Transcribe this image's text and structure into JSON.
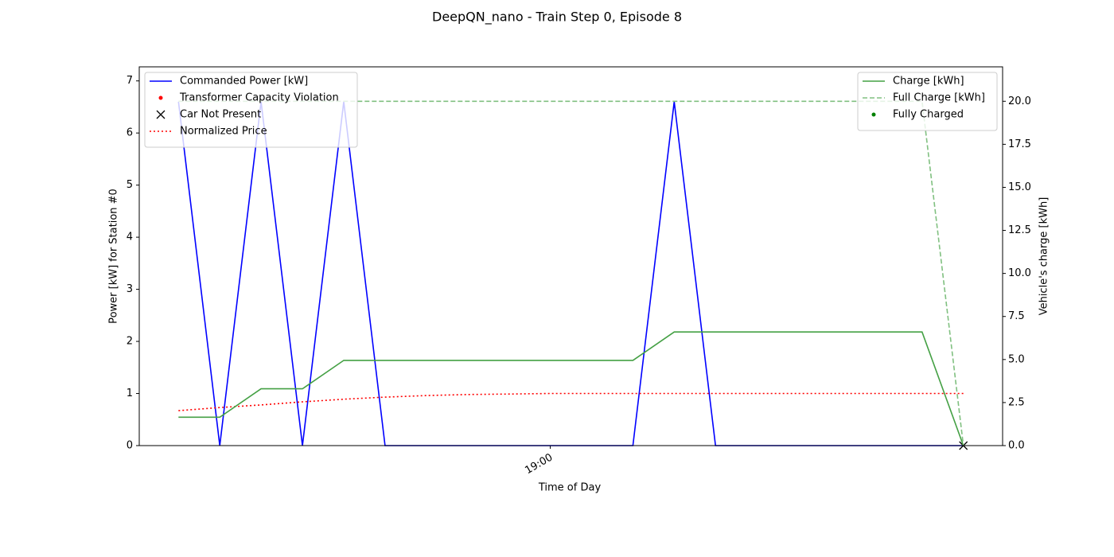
{
  "chart_data": {
    "type": "line",
    "title": "DeepQN_nano - Train Step 0, Episode 8",
    "xlabel": "Time of Day",
    "ylabel": "Power [kW] for Station #0",
    "y2label": "Vehicle's charge [kWh]",
    "x": [
      0,
      1,
      2,
      3,
      4,
      5,
      6,
      7,
      8,
      9,
      10,
      11,
      12,
      13,
      14,
      15,
      16,
      17,
      18,
      19
    ],
    "xlim": [
      -0.95,
      19.95
    ],
    "xticks": [
      {
        "value": 9,
        "label": "19:00"
      }
    ],
    "ylim": [
      0,
      7.27
    ],
    "yticks": [
      0,
      1,
      2,
      3,
      4,
      5,
      6,
      7
    ],
    "y2lim": [
      0,
      22
    ],
    "y2ticks": [
      {
        "value": 0,
        "label": "0.0"
      },
      {
        "value": 2.5,
        "label": "2.5"
      },
      {
        "value": 5,
        "label": "5.0"
      },
      {
        "value": 7.5,
        "label": "7.5"
      },
      {
        "value": 10,
        "label": "10.0"
      },
      {
        "value": 12.5,
        "label": "12.5"
      },
      {
        "value": 15,
        "label": "15.0"
      },
      {
        "value": 17.5,
        "label": "17.5"
      },
      {
        "value": 20,
        "label": "20.0"
      }
    ],
    "legend": "upper left",
    "legend2": "upper right",
    "series": [
      {
        "name": "Commanded Power [kW]",
        "color": "#0000ff",
        "style": "solid",
        "values": [
          6.6,
          0,
          6.6,
          0,
          6.6,
          0,
          0,
          0,
          0,
          0,
          0,
          0,
          6.6,
          0,
          0,
          0,
          0,
          0,
          0,
          0
        ]
      },
      {
        "name": "Transformer Capacity Violation",
        "color": "#ff0000",
        "style": "dot",
        "values": [
          null,
          null,
          null,
          null,
          null,
          null,
          null,
          null,
          null,
          null,
          null,
          null,
          null,
          null,
          null,
          null,
          null,
          null,
          null,
          null
        ]
      },
      {
        "name": "Car Not Present",
        "color": "#000000",
        "style": "cross",
        "values": [
          null,
          null,
          null,
          null,
          null,
          null,
          null,
          null,
          null,
          null,
          null,
          null,
          null,
          null,
          null,
          null,
          null,
          null,
          null,
          0
        ]
      },
      {
        "name": "Normalized Price",
        "color": "#ff0000",
        "style": "dotted",
        "values": [
          0.67,
          0.73,
          0.78,
          0.84,
          0.89,
          0.93,
          0.96,
          0.98,
          0.99,
          1.0,
          1.0,
          1.0,
          1.0,
          1.0,
          1.0,
          1.0,
          1.0,
          1.0,
          1.0,
          1.0
        ]
      },
      {
        "name": "Charge [kWh]",
        "color": "#44a044",
        "style": "solid",
        "axis": "y2",
        "values": [
          1.65,
          1.65,
          3.3,
          3.3,
          4.95,
          4.95,
          4.95,
          4.95,
          4.95,
          4.95,
          4.95,
          4.95,
          6.6,
          6.6,
          6.6,
          6.6,
          6.6,
          6.6,
          6.6,
          0
        ]
      },
      {
        "name": "Full Charge [kWh]",
        "color": "#80c080",
        "style": "dashed",
        "axis": "y2",
        "values": [
          20,
          20,
          20,
          20,
          20,
          20,
          20,
          20,
          20,
          20,
          20,
          20,
          20,
          20,
          20,
          20,
          20,
          20,
          20,
          0
        ]
      },
      {
        "name": "Fully Charged",
        "color": "#008000",
        "style": "dot",
        "axis": "y2",
        "values": [
          null,
          null,
          null,
          null,
          null,
          null,
          null,
          null,
          null,
          null,
          null,
          null,
          null,
          null,
          null,
          null,
          null,
          null,
          null,
          null
        ]
      }
    ]
  }
}
